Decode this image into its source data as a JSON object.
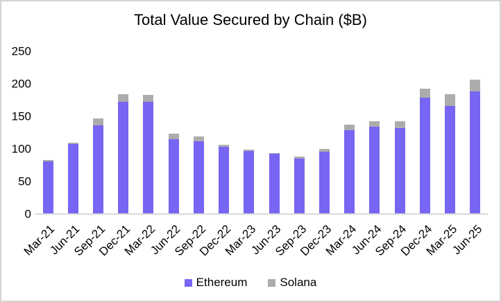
{
  "chart_data": {
    "type": "bar",
    "stacked": true,
    "title": "Total Value Secured by Chain ($B)",
    "categories": [
      "Mar-21",
      "Jun-21",
      "Sep-21",
      "Dec-21",
      "Mar-22",
      "Jun-22",
      "Sep-22",
      "Dec-22",
      "Mar-23",
      "Jun-23",
      "Sep-23",
      "Dec-23",
      "Mar-24",
      "Jun-24",
      "Sep-24",
      "Dec-24",
      "Mar-25",
      "Jun-25"
    ],
    "series": [
      {
        "name": "Ethereum",
        "color": "#7765f3",
        "values": [
          80,
          106,
          135,
          171,
          171,
          114,
          111,
          102,
          96,
          91,
          84,
          95,
          128,
          133,
          131,
          178,
          165,
          187
        ]
      },
      {
        "name": "Solana",
        "color": "#acacac",
        "values": [
          2,
          3,
          11,
          12,
          11,
          8,
          7,
          3,
          2,
          2,
          3,
          4,
          8,
          8,
          10,
          13,
          18,
          18
        ]
      }
    ],
    "xlabel": "",
    "ylabel": "",
    "ylim": [
      0,
      250
    ],
    "yticks": [
      0,
      50,
      100,
      150,
      200,
      250
    ],
    "grid": false,
    "legend_position": "bottom",
    "axis_line_color": "#d9d9d9"
  }
}
